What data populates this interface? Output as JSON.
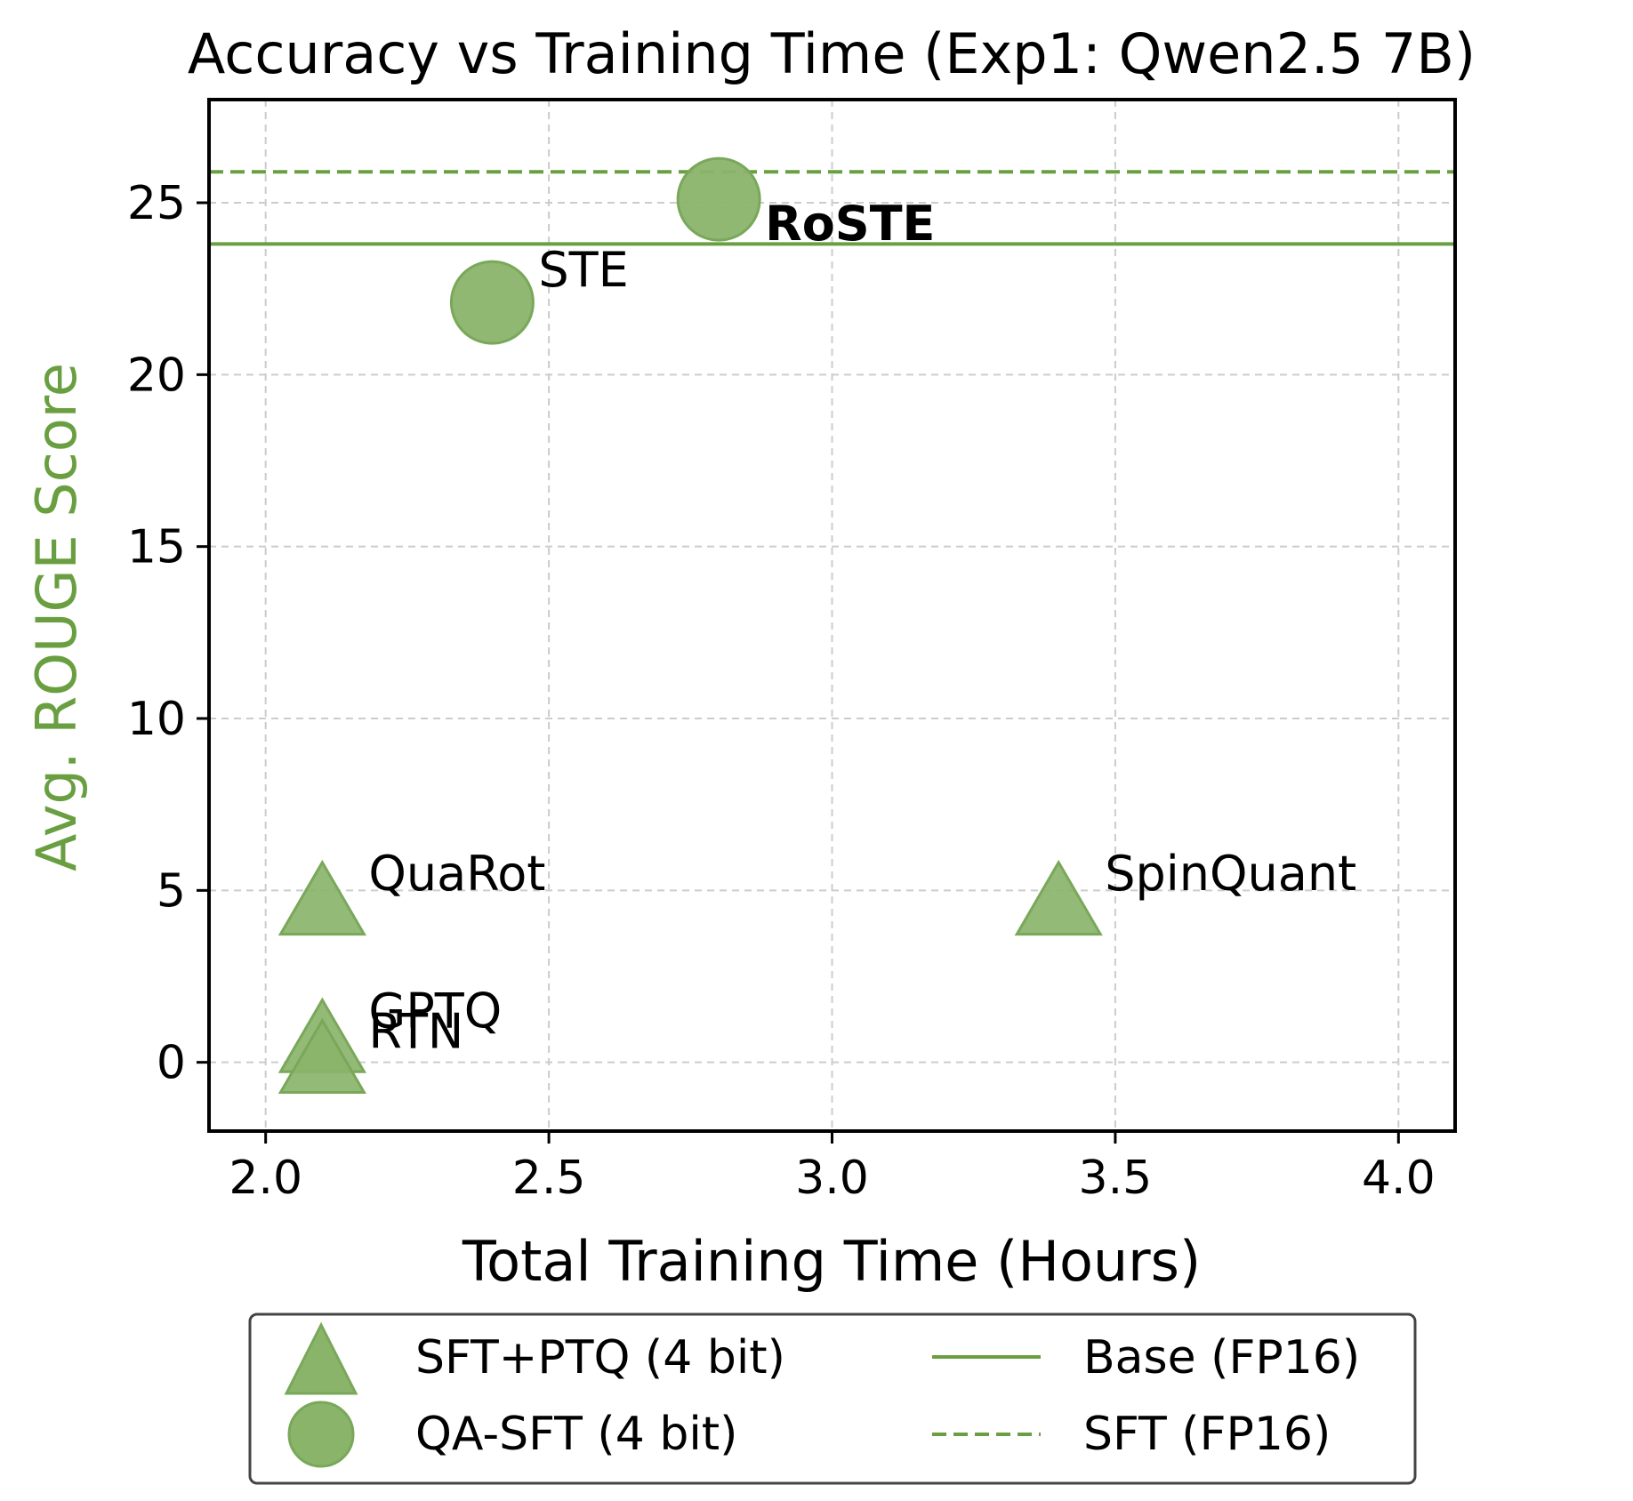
{
  "colors": {
    "accent": "#6a9f41",
    "marker_fill": "#8ab46a",
    "marker_stroke": "#79a85a",
    "grid": "#cccccc",
    "text": "#000000",
    "legend_border": "#444444"
  },
  "chart_data": {
    "type": "scatter",
    "title": "Accuracy vs Training Time (Exp1: Qwen2.5 7B)",
    "xlabel": "Total Training Time (Hours)",
    "ylabel": "Avg. ROUGE Score",
    "xlim": [
      1.9,
      4.1
    ],
    "ylim": [
      -2,
      28
    ],
    "xticks": [
      2.0,
      2.5,
      3.0,
      3.5,
      4.0
    ],
    "xtick_labels": [
      "2.0",
      "2.5",
      "3.0",
      "3.5",
      "4.0"
    ],
    "yticks": [
      0,
      5,
      10,
      15,
      20,
      25
    ],
    "ytick_labels": [
      "0",
      "5",
      "10",
      "15",
      "20",
      "25"
    ],
    "grid": true,
    "reference_lines": [
      {
        "name": "Base (FP16)",
        "y": 23.8,
        "style": "solid"
      },
      {
        "name": "SFT (FP16)",
        "y": 25.9,
        "style": "dashed"
      }
    ],
    "series": [
      {
        "name": "SFT+PTQ (4 bit)",
        "marker": "triangle",
        "points": [
          {
            "label": "QuaRot",
            "x": 2.1,
            "y": 4.6,
            "bold": false
          },
          {
            "label": "SpinQuant",
            "x": 3.4,
            "y": 4.6,
            "bold": false
          },
          {
            "label": "GPTQ",
            "x": 2.1,
            "y": 0.6,
            "bold": false
          },
          {
            "label": "RTN",
            "x": 2.1,
            "y": 0.0,
            "bold": false
          }
        ]
      },
      {
        "name": "QA-SFT (4 bit)",
        "marker": "circle",
        "points": [
          {
            "label": "STE",
            "x": 2.4,
            "y": 22.1,
            "bold": false
          },
          {
            "label": "RoSTE",
            "x": 2.8,
            "y": 25.1,
            "bold": true
          }
        ]
      }
    ],
    "legend": {
      "placement": "bottom-outside",
      "entries": [
        {
          "label": "SFT+PTQ (4 bit)",
          "kind": "triangle"
        },
        {
          "label": "QA-SFT (4 bit)",
          "kind": "circle"
        },
        {
          "label": "Base (FP16)",
          "kind": "solid-line"
        },
        {
          "label": "SFT (FP16)",
          "kind": "dashed-line"
        }
      ]
    }
  }
}
